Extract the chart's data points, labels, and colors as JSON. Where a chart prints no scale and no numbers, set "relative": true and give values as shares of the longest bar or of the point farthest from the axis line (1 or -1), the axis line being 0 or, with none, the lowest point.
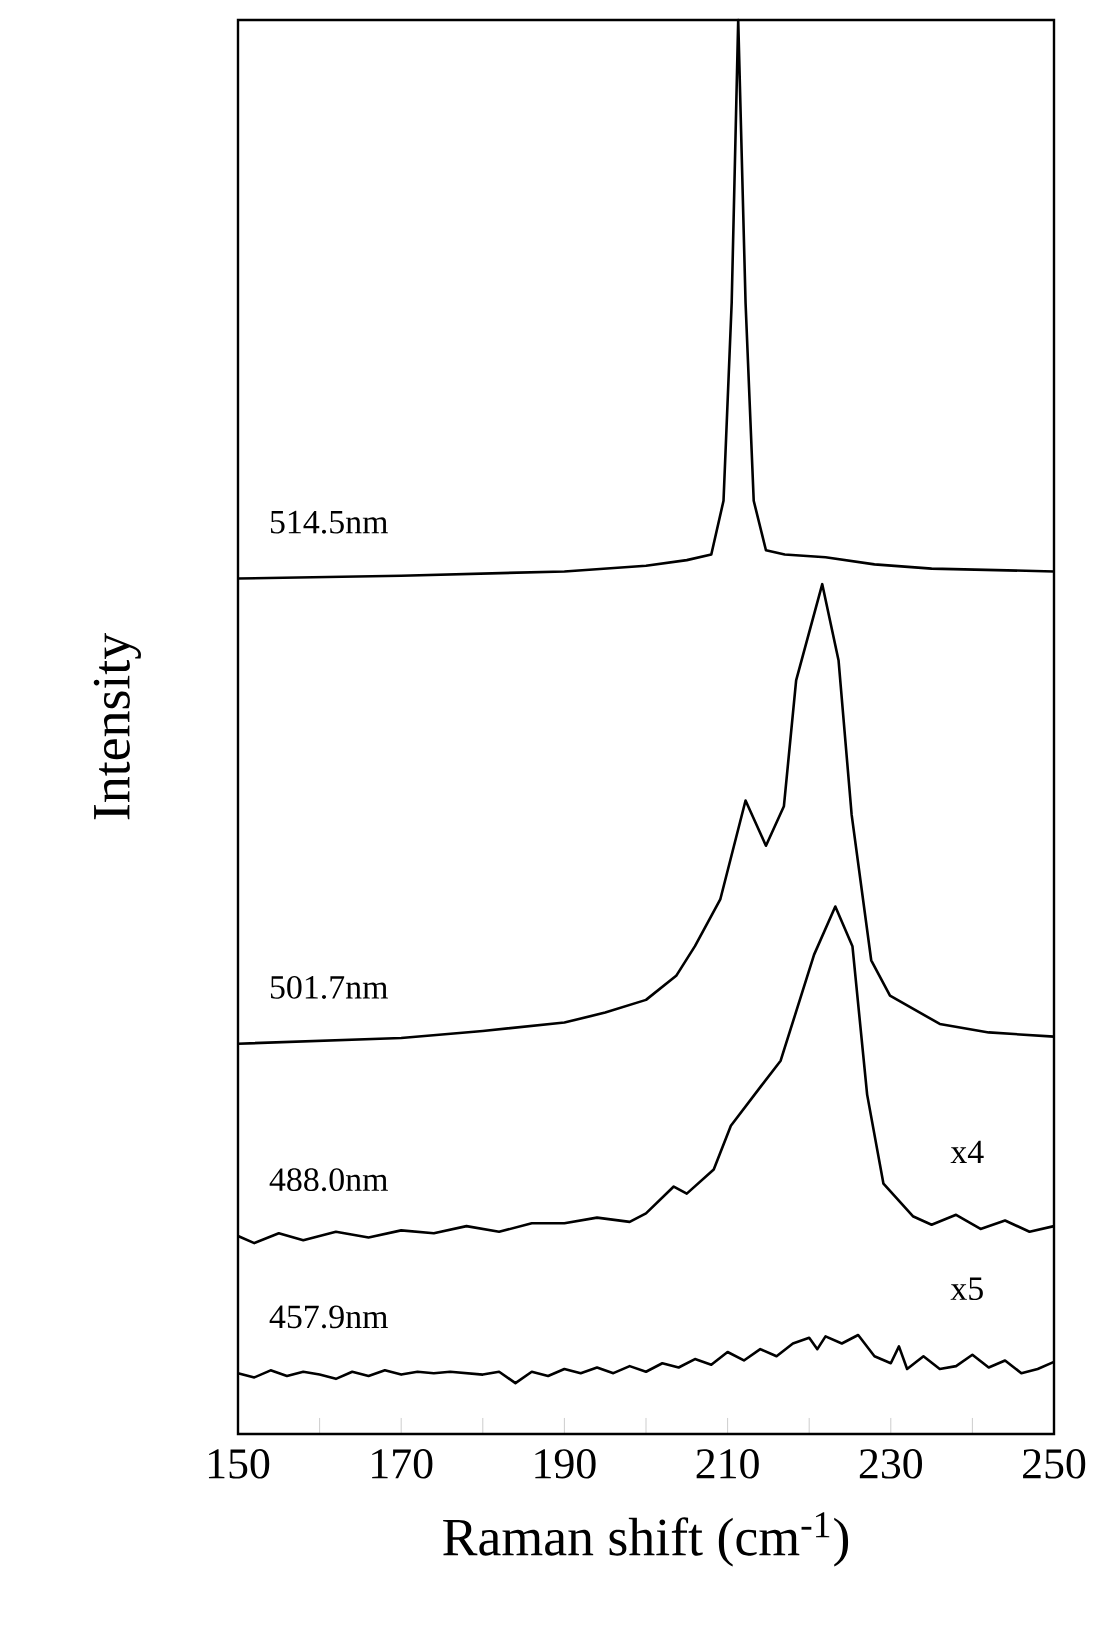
{
  "chart_data": {
    "type": "line",
    "relative": true,
    "xlabel": "Raman shift (cm$^{-1}$)",
    "ylabel": "Intensity",
    "xlim": [
      150,
      250
    ],
    "xticks": [
      150,
      {
        "value": 160,
        "label": null
      },
      170,
      {
        "value": 180,
        "label": null
      },
      190,
      {
        "value": 200,
        "label": null
      },
      210,
      {
        "value": 220,
        "label": null
      },
      230,
      {
        "value": 240,
        "label": null
      },
      250
    ],
    "annotations": [
      "x4",
      "x5"
    ],
    "series": [
      {
        "name": "514.5nm",
        "color": "#000000",
        "x": [
          150,
          170,
          190,
          200,
          205,
          208,
          209.5,
          210.5,
          211.3,
          212.2,
          213.2,
          214.7,
          217,
          222,
          228,
          235,
          250
        ],
        "values": [
          0.605,
          0.607,
          0.61,
          0.614,
          0.618,
          0.622,
          0.66,
          0.8,
          1.0,
          0.8,
          0.66,
          0.625,
          0.622,
          0.62,
          0.615,
          0.612,
          0.61
        ]
      },
      {
        "name": "501.7nm",
        "color": "#000000",
        "x": [
          150,
          160,
          170,
          180,
          190,
          195,
          200,
          203.7,
          206,
          209.1,
          212.2,
          214.7,
          216.9,
          218.4,
          221.6,
          223.6,
          225.2,
          227.6,
          229.9,
          236,
          242,
          250
        ],
        "values": [
          0.276,
          0.278,
          0.28,
          0.285,
          0.291,
          0.298,
          0.307,
          0.324,
          0.345,
          0.378,
          0.448,
          0.416,
          0.444,
          0.533,
          0.601,
          0.547,
          0.438,
          0.335,
          0.31,
          0.29,
          0.284,
          0.281
        ]
      },
      {
        "name": "488.0nm",
        "color": "#000000",
        "x": [
          150,
          152,
          155,
          158,
          162,
          166,
          170,
          174,
          178,
          182,
          186,
          190,
          194,
          198,
          200,
          203.4,
          205,
          208.3,
          210.4,
          214.1,
          216.5,
          220.6,
          223.2,
          225.3,
          227.1,
          229.1,
          232.7,
          235,
          238,
          241,
          244,
          247,
          250
        ],
        "values": [
          0.14,
          0.135,
          0.142,
          0.137,
          0.143,
          0.139,
          0.144,
          0.142,
          0.147,
          0.143,
          0.149,
          0.149,
          0.153,
          0.15,
          0.156,
          0.175,
          0.17,
          0.187,
          0.218,
          0.246,
          0.264,
          0.339,
          0.373,
          0.345,
          0.24,
          0.177,
          0.154,
          0.148,
          0.155,
          0.145,
          0.151,
          0.143,
          0.147
        ]
      },
      {
        "name": "457.9nm",
        "color": "#000000",
        "x": [
          150,
          152,
          154,
          156,
          158,
          160,
          162,
          164,
          166,
          168,
          170,
          172,
          174,
          176,
          178,
          180,
          182,
          184,
          186,
          188,
          190,
          192,
          194,
          196,
          198,
          200,
          202,
          204,
          206,
          208,
          210,
          212,
          214,
          216,
          218,
          220,
          221,
          222,
          224,
          226,
          228,
          230,
          231,
          232,
          234,
          236,
          238,
          240,
          242,
          244,
          246,
          248,
          250
        ],
        "values": [
          0.043,
          0.04,
          0.045,
          0.041,
          0.044,
          0.042,
          0.039,
          0.044,
          0.041,
          0.045,
          0.042,
          0.044,
          0.043,
          0.044,
          0.043,
          0.042,
          0.044,
          0.036,
          0.044,
          0.041,
          0.046,
          0.043,
          0.047,
          0.043,
          0.048,
          0.044,
          0.05,
          0.047,
          0.053,
          0.049,
          0.058,
          0.052,
          0.06,
          0.055,
          0.064,
          0.068,
          0.06,
          0.069,
          0.064,
          0.07,
          0.055,
          0.05,
          0.062,
          0.046,
          0.055,
          0.046,
          0.048,
          0.056,
          0.047,
          0.052,
          0.043,
          0.046,
          0.051
        ]
      }
    ]
  }
}
